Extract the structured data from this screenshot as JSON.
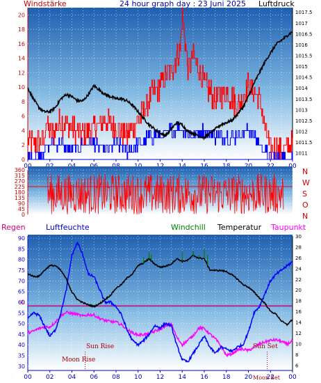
{
  "header": {
    "left": "Windstärke",
    "title": "24 hour graph day : 23 Juni 2025",
    "right": "Luftdruck"
  },
  "compass": [
    "N",
    "W",
    "S",
    "O",
    "N"
  ],
  "legend": {
    "regen": "Regen",
    "luftfeuchte": "Luftfeuchte",
    "windchill": "Windchill",
    "temperatur": "Temperatur",
    "taupunkt": "Taupunkt"
  },
  "markers": {
    "zero_label": "0",
    "sun_rise": "Sun Rise",
    "moon_rise": "Moon Rise",
    "sun_set": "Sun Set",
    "moon_set": "Moon Set"
  },
  "colors": {
    "wind_gust": "#ff0000",
    "wind_avg": "#0000ff",
    "pressure": "#000000",
    "direction": "#ff0000",
    "humidity": "#0000ff",
    "temperature": "#000000",
    "dewpoint": "#ff00ff",
    "windchill": "#008000",
    "rain": "#cc0077",
    "axis_left": "#cc0000",
    "axis_humidity": "#0000cc",
    "header_title": "#0000aa"
  },
  "chart_data": [
    {
      "type": "line",
      "name": "wind_and_pressure",
      "x_ticks": [
        "00",
        "02",
        "04",
        "06",
        "08",
        "10",
        "12",
        "14",
        "16",
        "18",
        "20",
        "22",
        "00"
      ],
      "y_left": {
        "ticks": [
          0,
          2,
          4,
          6,
          8,
          10,
          12,
          14,
          16,
          18,
          20
        ],
        "range": [
          0,
          21
        ]
      },
      "y_right": {
        "ticks": [
          "1011",
          "1011.5",
          "1012",
          "1012.5",
          "1013",
          "1013.5",
          "1014",
          "1014.5",
          "1015",
          "1015.5",
          "1016",
          "1016.5",
          "1017",
          "1017.5"
        ],
        "range": [
          1010.7,
          1017.7
        ]
      },
      "series": [
        {
          "key": "wind_gust",
          "x": [
            0,
            1.5,
            1.6,
            2.2,
            3,
            4,
            5,
            6,
            7,
            8,
            9,
            10,
            11,
            12,
            13,
            13.8,
            14,
            14.5,
            15,
            15.5,
            16,
            17,
            18,
            19,
            20,
            21,
            21.5,
            22,
            23,
            24
          ],
          "y": [
            2,
            2,
            5,
            3,
            5,
            4,
            3,
            4,
            5,
            4,
            3,
            5,
            8,
            10,
            12,
            15,
            20,
            12,
            14,
            12,
            10,
            8,
            9,
            7,
            10,
            8,
            4,
            1,
            1,
            2
          ]
        },
        {
          "key": "wind_avg",
          "x": [
            0,
            1.5,
            2,
            3,
            4,
            5,
            6,
            7,
            8,
            9,
            10,
            11,
            12,
            13,
            14,
            15,
            16,
            17,
            18,
            19,
            20,
            21,
            22,
            24
          ],
          "y": [
            0,
            1,
            2,
            2,
            1,
            2,
            2,
            1,
            2,
            1,
            2,
            3,
            3,
            4,
            4,
            3,
            4,
            3,
            3,
            3,
            4,
            2,
            0,
            0
          ]
        },
        {
          "key": "pressure",
          "x": [
            0,
            0.5,
            1,
            1.5,
            2,
            2.5,
            3,
            3.5,
            4,
            4.5,
            5,
            5.5,
            6,
            6.5,
            7,
            7.5,
            8,
            8.5,
            9,
            9.5,
            10,
            10.5,
            11,
            11.5,
            12,
            12.5,
            13,
            13.5,
            14,
            14.5,
            15,
            15.5,
            16,
            16.5,
            17,
            17.5,
            18,
            18.5,
            19,
            19.5,
            20,
            20.5,
            21,
            21.5,
            22,
            22.5,
            23,
            23.5,
            24
          ],
          "y": [
            1014,
            1013.5,
            1013.1,
            1012.9,
            1012.9,
            1013.1,
            1013.5,
            1013.7,
            1013.6,
            1013.4,
            1013.4,
            1013.7,
            1014.1,
            1013.9,
            1013.7,
            1013.6,
            1013.5,
            1013.5,
            1013.4,
            1013.2,
            1012.9,
            1012.6,
            1012.3,
            1012.1,
            1011.9,
            1011.8,
            1012.1,
            1012.4,
            1012.3,
            1012.0,
            1011.9,
            1011.8,
            1011.7,
            1011.9,
            1012.1,
            1012.3,
            1012.4,
            1012.5,
            1012.8,
            1013.1,
            1013.6,
            1014.2,
            1014.7,
            1015.2,
            1015.6,
            1016.0,
            1016.2,
            1016.4,
            1016.6
          ]
        }
      ]
    },
    {
      "type": "line",
      "name": "wind_direction",
      "x_ticks": [
        "00",
        "02",
        "04",
        "06",
        "08",
        "10",
        "12",
        "14",
        "16",
        "18",
        "20",
        "22",
        "00"
      ],
      "y_left": {
        "ticks": [
          0,
          45,
          90,
          135,
          180,
          225,
          270,
          315,
          360
        ],
        "range": [
          0,
          360
        ]
      },
      "series": [
        {
          "key": "direction",
          "x": [
            1.8,
            23.2
          ],
          "y_range": [
            0,
            330
          ],
          "reference_line": 225
        }
      ]
    },
    {
      "type": "line",
      "name": "temp_humidity",
      "x_ticks": [
        "00",
        "02",
        "04",
        "06",
        "08",
        "10",
        "12",
        "14",
        "16",
        "18",
        "20",
        "22",
        "00"
      ],
      "y_left": {
        "ticks": [
          30,
          35,
          40,
          45,
          50,
          55,
          60,
          65,
          70,
          75,
          80,
          85,
          90
        ],
        "range": [
          28,
          91
        ]
      },
      "y_right": {
        "ticks": [
          6,
          8,
          10,
          12,
          14,
          16,
          18,
          20,
          22,
          24,
          26,
          28,
          30
        ],
        "range": [
          5,
          30
        ]
      },
      "rain_zero_line": 17,
      "series": [
        {
          "key": "humidity",
          "x": [
            0,
            0.5,
            1,
            1.5,
            2,
            2.5,
            3,
            3.5,
            4,
            4.5,
            5,
            5.5,
            6,
            6.5,
            7,
            7.5,
            8,
            8.5,
            9,
            9.5,
            10,
            10.5,
            11,
            11.5,
            12,
            12.5,
            13,
            13.5,
            14,
            14.5,
            15,
            15.5,
            16,
            16.5,
            17,
            17.5,
            18,
            18.5,
            19,
            19.5,
            20,
            20.5,
            21,
            21.5,
            22,
            22.5,
            23,
            23.5,
            24
          ],
          "y": [
            52,
            55,
            54,
            49,
            44,
            47,
            55,
            66,
            82,
            88,
            82,
            73,
            72,
            66,
            60,
            60,
            58,
            54,
            47,
            42,
            40,
            42,
            45,
            49,
            48,
            50,
            49,
            40,
            33,
            32,
            36,
            40,
            44,
            39,
            36,
            39,
            38,
            37,
            39,
            40,
            46,
            55,
            58,
            64,
            70,
            73,
            75,
            77,
            79
          ]
        },
        {
          "key": "temperature",
          "x": [
            0,
            0.5,
            1,
            1.5,
            2,
            2.5,
            3,
            3.5,
            4,
            4.5,
            5,
            5.5,
            6,
            6.5,
            7,
            7.5,
            8,
            8.5,
            9,
            9.5,
            10,
            10.5,
            11,
            11.5,
            12,
            12.5,
            13,
            13.5,
            14,
            14.5,
            15,
            15.5,
            16,
            16.5,
            17,
            17.5,
            18,
            18.5,
            19,
            19.5,
            20,
            20.5,
            21,
            21.5,
            22,
            22.5,
            23,
            23.5,
            24
          ],
          "y": [
            23,
            22.5,
            22.5,
            23.6,
            24.5,
            24.5,
            23.6,
            22,
            19.6,
            18.2,
            17.6,
            17.2,
            16.9,
            17.4,
            18.2,
            19,
            20.3,
            21,
            22.2,
            23,
            24.5,
            25,
            25.8,
            24.8,
            24.2,
            24.4,
            24.8,
            25.8,
            25.3,
            25.5,
            26.4,
            25.9,
            25.8,
            23.7,
            23.6,
            23.6,
            23.4,
            22.8,
            22,
            21,
            20.5,
            19.6,
            18.5,
            17.5,
            16,
            15.5,
            14.2,
            13.5,
            14.5
          ]
        },
        {
          "key": "dewpoint",
          "x": [
            0,
            0.5,
            1,
            1.5,
            2,
            2.5,
            3,
            3.5,
            4,
            4.5,
            5,
            5.5,
            6,
            6.5,
            7,
            7.5,
            8,
            8.5,
            9,
            9.5,
            10,
            10.5,
            11,
            11.5,
            12,
            12.5,
            13,
            13.5,
            14,
            14.5,
            15,
            15.5,
            16,
            16.5,
            17,
            17.5,
            18,
            18.5,
            19,
            19.5,
            20,
            20.5,
            21,
            21.5,
            22,
            22.5,
            23,
            23.5,
            24
          ],
          "y": [
            12,
            12.3,
            12.8,
            13.1,
            13.1,
            14,
            15.2,
            15.8,
            15.6,
            15.4,
            15.1,
            15.4,
            15.3,
            14.7,
            14.3,
            14.1,
            14,
            13.5,
            12.6,
            12,
            11.6,
            11.7,
            11.8,
            12.3,
            12.7,
            13.2,
            13.7,
            11.2,
            9.8,
            10.6,
            11.5,
            12.9,
            12.8,
            11.8,
            10.9,
            9.6,
            7.8,
            8.1,
            8.8,
            9,
            8.7,
            9.3,
            9.9,
            10.3,
            10.6,
            10.7,
            10.4,
            9.9,
            10.5
          ]
        },
        {
          "key": "windchill",
          "x": [
            10.5,
            11,
            11.2,
            13.5,
            14,
            15,
            15.5,
            16,
            16.3
          ],
          "y": [
            26,
            27,
            26.5,
            26,
            27,
            27.3,
            26.5,
            27.5,
            26.5
          ]
        }
      ]
    }
  ]
}
